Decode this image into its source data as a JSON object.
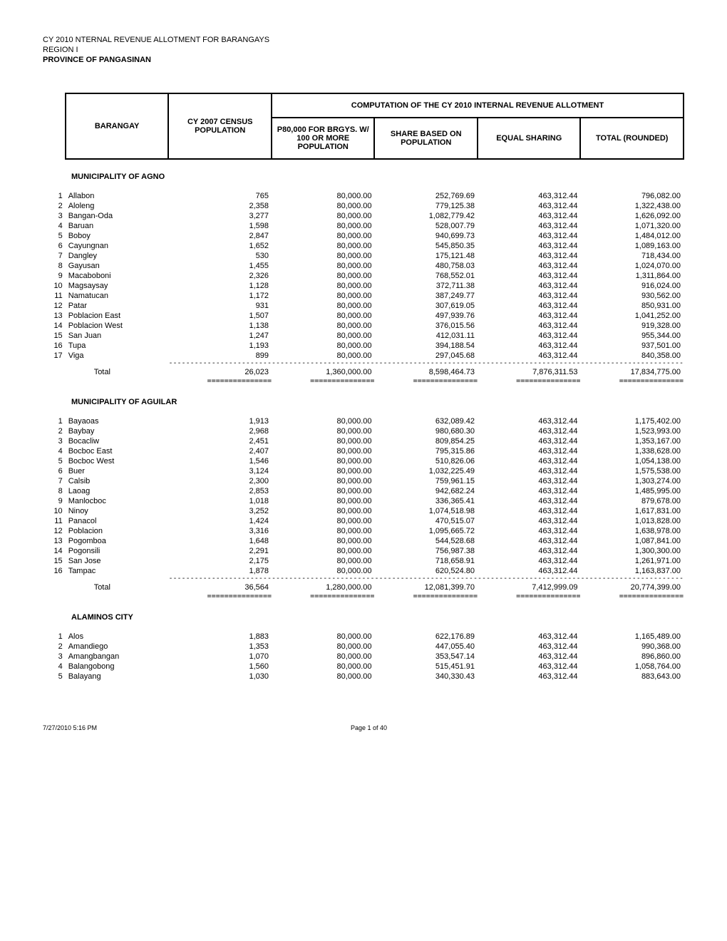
{
  "header": {
    "line1": "CY 2010 NTERNAL REVENUE ALLOTMENT FOR BARANGAYS",
    "line2": "REGION I",
    "line3": "PROVINCE OF PANGASINAN"
  },
  "columns": {
    "barangay": "BARANGAY",
    "census": "CY 2007 CENSUS POPULATION",
    "p80": "P80,000 FOR BRGYS. W/ 100 OR MORE POPULATION",
    "share": "SHARE BASED ON POPULATION",
    "equal": "EQUAL SHARING",
    "total": "TOTAL (ROUNDED)",
    "computation_header": "COMPUTATION OF THE CY 2010 INTERNAL REVENUE ALLOTMENT"
  },
  "sections": [
    {
      "name": "MUNICIPALITY OF AGNO",
      "rows": [
        {
          "n": 1,
          "name": "Allabon",
          "pop": "765",
          "p80": "80,000.00",
          "share": "252,769.69",
          "equal": "463,312.44",
          "total": "796,082.00"
        },
        {
          "n": 2,
          "name": "Aloleng",
          "pop": "2,358",
          "p80": "80,000.00",
          "share": "779,125.38",
          "equal": "463,312.44",
          "total": "1,322,438.00"
        },
        {
          "n": 3,
          "name": "Bangan-Oda",
          "pop": "3,277",
          "p80": "80,000.00",
          "share": "1,082,779.42",
          "equal": "463,312.44",
          "total": "1,626,092.00"
        },
        {
          "n": 4,
          "name": "Baruan",
          "pop": "1,598",
          "p80": "80,000.00",
          "share": "528,007.79",
          "equal": "463,312.44",
          "total": "1,071,320.00"
        },
        {
          "n": 5,
          "name": "Boboy",
          "pop": "2,847",
          "p80": "80,000.00",
          "share": "940,699.73",
          "equal": "463,312.44",
          "total": "1,484,012.00"
        },
        {
          "n": 6,
          "name": "Cayungnan",
          "pop": "1,652",
          "p80": "80,000.00",
          "share": "545,850.35",
          "equal": "463,312.44",
          "total": "1,089,163.00"
        },
        {
          "n": 7,
          "name": "Dangley",
          "pop": "530",
          "p80": "80,000.00",
          "share": "175,121.48",
          "equal": "463,312.44",
          "total": "718,434.00"
        },
        {
          "n": 8,
          "name": "Gayusan",
          "pop": "1,455",
          "p80": "80,000.00",
          "share": "480,758.03",
          "equal": "463,312.44",
          "total": "1,024,070.00"
        },
        {
          "n": 9,
          "name": "Macaboboni",
          "pop": "2,326",
          "p80": "80,000.00",
          "share": "768,552.01",
          "equal": "463,312.44",
          "total": "1,311,864.00"
        },
        {
          "n": 10,
          "name": "Magsaysay",
          "pop": "1,128",
          "p80": "80,000.00",
          "share": "372,711.38",
          "equal": "463,312.44",
          "total": "916,024.00"
        },
        {
          "n": 11,
          "name": "Namatucan",
          "pop": "1,172",
          "p80": "80,000.00",
          "share": "387,249.77",
          "equal": "463,312.44",
          "total": "930,562.00"
        },
        {
          "n": 12,
          "name": "Patar",
          "pop": "931",
          "p80": "80,000.00",
          "share": "307,619.05",
          "equal": "463,312.44",
          "total": "850,931.00"
        },
        {
          "n": 13,
          "name": "Poblacion East",
          "pop": "1,507",
          "p80": "80,000.00",
          "share": "497,939.76",
          "equal": "463,312.44",
          "total": "1,041,252.00"
        },
        {
          "n": 14,
          "name": "Poblacion West",
          "pop": "1,138",
          "p80": "80,000.00",
          "share": "376,015.56",
          "equal": "463,312.44",
          "total": "919,328.00"
        },
        {
          "n": 15,
          "name": "San Juan",
          "pop": "1,247",
          "p80": "80,000.00",
          "share": "412,031.11",
          "equal": "463,312.44",
          "total": "955,344.00"
        },
        {
          "n": 16,
          "name": "Tupa",
          "pop": "1,193",
          "p80": "80,000.00",
          "share": "394,188.54",
          "equal": "463,312.44",
          "total": "937,501.00"
        },
        {
          "n": 17,
          "name": "Viga",
          "pop": "899",
          "p80": "80,000.00",
          "share": "297,045.68",
          "equal": "463,312.44",
          "total": "840,358.00"
        }
      ],
      "total": {
        "label": "Total",
        "pop": "26,023",
        "p80": "1,360,000.00",
        "share": "8,598,464.73",
        "equal": "7,876,311.53",
        "total": "17,834,775.00"
      }
    },
    {
      "name": "MUNICIPALITY OF AGUILAR",
      "rows": [
        {
          "n": 1,
          "name": "Bayaoas",
          "pop": "1,913",
          "p80": "80,000.00",
          "share": "632,089.42",
          "equal": "463,312.44",
          "total": "1,175,402.00"
        },
        {
          "n": 2,
          "name": "Baybay",
          "pop": "2,968",
          "p80": "80,000.00",
          "share": "980,680.30",
          "equal": "463,312.44",
          "total": "1,523,993.00"
        },
        {
          "n": 3,
          "name": "Bocacliw",
          "pop": "2,451",
          "p80": "80,000.00",
          "share": "809,854.25",
          "equal": "463,312.44",
          "total": "1,353,167.00"
        },
        {
          "n": 4,
          "name": "Bocboc East",
          "pop": "2,407",
          "p80": "80,000.00",
          "share": "795,315.86",
          "equal": "463,312.44",
          "total": "1,338,628.00"
        },
        {
          "n": 5,
          "name": "Bocboc West",
          "pop": "1,546",
          "p80": "80,000.00",
          "share": "510,826.06",
          "equal": "463,312.44",
          "total": "1,054,138.00"
        },
        {
          "n": 6,
          "name": "Buer",
          "pop": "3,124",
          "p80": "80,000.00",
          "share": "1,032,225.49",
          "equal": "463,312.44",
          "total": "1,575,538.00"
        },
        {
          "n": 7,
          "name": "Calsib",
          "pop": "2,300",
          "p80": "80,000.00",
          "share": "759,961.15",
          "equal": "463,312.44",
          "total": "1,303,274.00"
        },
        {
          "n": 8,
          "name": "Laoag",
          "pop": "2,853",
          "p80": "80,000.00",
          "share": "942,682.24",
          "equal": "463,312.44",
          "total": "1,485,995.00"
        },
        {
          "n": 9,
          "name": "Manlocboc",
          "pop": "1,018",
          "p80": "80,000.00",
          "share": "336,365.41",
          "equal": "463,312.44",
          "total": "879,678.00"
        },
        {
          "n": 10,
          "name": "Ninoy",
          "pop": "3,252",
          "p80": "80,000.00",
          "share": "1,074,518.98",
          "equal": "463,312.44",
          "total": "1,617,831.00"
        },
        {
          "n": 11,
          "name": "Panacol",
          "pop": "1,424",
          "p80": "80,000.00",
          "share": "470,515.07",
          "equal": "463,312.44",
          "total": "1,013,828.00"
        },
        {
          "n": 12,
          "name": "Poblacion",
          "pop": "3,316",
          "p80": "80,000.00",
          "share": "1,095,665.72",
          "equal": "463,312.44",
          "total": "1,638,978.00"
        },
        {
          "n": 13,
          "name": "Pogomboa",
          "pop": "1,648",
          "p80": "80,000.00",
          "share": "544,528.68",
          "equal": "463,312.44",
          "total": "1,087,841.00"
        },
        {
          "n": 14,
          "name": "Pogonsili",
          "pop": "2,291",
          "p80": "80,000.00",
          "share": "756,987.38",
          "equal": "463,312.44",
          "total": "1,300,300.00"
        },
        {
          "n": 15,
          "name": "San Jose",
          "pop": "2,175",
          "p80": "80,000.00",
          "share": "718,658.91",
          "equal": "463,312.44",
          "total": "1,261,971.00"
        },
        {
          "n": 16,
          "name": "Tampac",
          "pop": "1,878",
          "p80": "80,000.00",
          "share": "620,524.80",
          "equal": "463,312.44",
          "total": "1,163,837.00"
        }
      ],
      "total": {
        "label": "Total",
        "pop": "36,564",
        "p80": "1,280,000.00",
        "share": "12,081,399.70",
        "equal": "7,412,999.09",
        "total": "20,774,399.00"
      }
    },
    {
      "name": "ALAMINOS CITY",
      "rows": [
        {
          "n": 1,
          "name": "Alos",
          "pop": "1,883",
          "p80": "80,000.00",
          "share": "622,176.89",
          "equal": "463,312.44",
          "total": "1,165,489.00"
        },
        {
          "n": 2,
          "name": "Amandiego",
          "pop": "1,353",
          "p80": "80,000.00",
          "share": "447,055.40",
          "equal": "463,312.44",
          "total": "990,368.00"
        },
        {
          "n": 3,
          "name": "Amangbangan",
          "pop": "1,070",
          "p80": "80,000.00",
          "share": "353,547.14",
          "equal": "463,312.44",
          "total": "896,860.00"
        },
        {
          "n": 4,
          "name": "Balangobong",
          "pop": "1,560",
          "p80": "80,000.00",
          "share": "515,451.91",
          "equal": "463,312.44",
          "total": "1,058,764.00"
        },
        {
          "n": 5,
          "name": "Balayang",
          "pop": "1,030",
          "p80": "80,000.00",
          "share": "340,330.43",
          "equal": "463,312.44",
          "total": "883,643.00"
        }
      ],
      "total": null
    }
  ],
  "footer": {
    "left": "7/27/2010 5:16 PM",
    "center": "Page 1 of 40"
  },
  "style": {
    "dash_segment": "--------------------",
    "eq_segment": "==========="
  }
}
